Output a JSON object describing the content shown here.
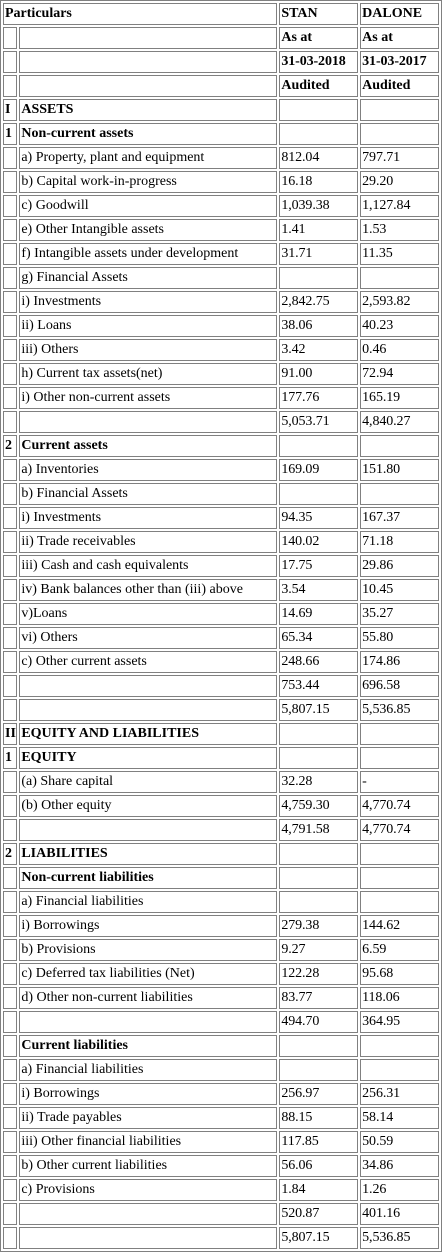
{
  "header": {
    "particulars": "Particulars",
    "col1_name": "STAN",
    "col2_name": "DALONE",
    "as_at": "As at",
    "col1_date": "31-03-2018",
    "col2_date": "31-03-2017",
    "audited": "Audited"
  },
  "rows": [
    {
      "idx": "I",
      "label": "ASSETS",
      "v1": "",
      "v2": "",
      "bold": true
    },
    {
      "idx": "1",
      "label": "Non-current assets",
      "v1": "",
      "v2": "",
      "bold": true
    },
    {
      "idx": "",
      "label": "a) Property, plant and equipment",
      "v1": "812.04",
      "v2": "797.71"
    },
    {
      "idx": "",
      "label": "b) Capital work-in-progress",
      "v1": "16.18",
      "v2": "29.20"
    },
    {
      "idx": "",
      "label": "c) Goodwill",
      "v1": "1,039.38",
      "v2": "1,127.84"
    },
    {
      "idx": "",
      "label": "e) Other Intangible assets",
      "v1": "1.41",
      "v2": "1.53"
    },
    {
      "idx": "",
      "label": "f) Intangible assets under development",
      "v1": "31.71",
      "v2": "11.35"
    },
    {
      "idx": "",
      "label": "g) Financial Assets",
      "v1": "",
      "v2": ""
    },
    {
      "idx": "",
      "label": "i) Investments",
      "v1": "2,842.75",
      "v2": "2,593.82"
    },
    {
      "idx": "",
      "label": "ii) Loans",
      "v1": "38.06",
      "v2": "40.23"
    },
    {
      "idx": "",
      "label": "iii) Others",
      "v1": "3.42",
      "v2": "0.46"
    },
    {
      "idx": "",
      "label": "h) Current tax assets(net)",
      "v1": "91.00",
      "v2": "72.94"
    },
    {
      "idx": "",
      "label": "i) Other non-current assets",
      "v1": "177.76",
      "v2": "165.19"
    },
    {
      "idx": "",
      "label": "",
      "v1": "5,053.71",
      "v2": "4,840.27"
    },
    {
      "idx": "2",
      "label": "Current assets",
      "v1": "",
      "v2": "",
      "bold": true
    },
    {
      "idx": "",
      "label": "a) Inventories",
      "v1": "169.09",
      "v2": "151.80"
    },
    {
      "idx": "",
      "label": "b) Financial Assets",
      "v1": "",
      "v2": ""
    },
    {
      "idx": "",
      "label": "i) Investments",
      "v1": "94.35",
      "v2": "167.37"
    },
    {
      "idx": "",
      "label": "ii) Trade receivables",
      "v1": "140.02",
      "v2": "71.18"
    },
    {
      "idx": "",
      "label": "iii) Cash and cash equivalents",
      "v1": "17.75",
      "v2": "29.86"
    },
    {
      "idx": "",
      "label": "iv) Bank balances other than (iii) above",
      "v1": "3.54",
      "v2": "10.45"
    },
    {
      "idx": "",
      "label": "v)Loans",
      "v1": "14.69",
      "v2": "35.27"
    },
    {
      "idx": "",
      "label": "vi) Others",
      "v1": "65.34",
      "v2": "55.80"
    },
    {
      "idx": "",
      "label": "c) Other current assets",
      "v1": "248.66",
      "v2": "174.86"
    },
    {
      "idx": "",
      "label": "",
      "v1": "753.44",
      "v2": "696.58"
    },
    {
      "idx": "",
      "label": "",
      "v1": "5,807.15",
      "v2": "5,536.85"
    },
    {
      "idx": "II",
      "label": "EQUITY AND LIABILITIES",
      "v1": "",
      "v2": "",
      "bold": true
    },
    {
      "idx": "1",
      "label": "EQUITY",
      "v1": "",
      "v2": "",
      "bold": true
    },
    {
      "idx": "",
      "label": "(a) Share capital",
      "v1": "32.28",
      "v2": "-"
    },
    {
      "idx": "",
      "label": "(b) Other equity",
      "v1": "4,759.30",
      "v2": "4,770.74"
    },
    {
      "idx": "",
      "label": "",
      "v1": "4,791.58",
      "v2": "4,770.74"
    },
    {
      "idx": "2",
      "label": "LIABILITIES",
      "v1": "",
      "v2": "",
      "bold": true
    },
    {
      "idx": "",
      "label": "Non-current liabilities",
      "v1": "",
      "v2": "",
      "bold": true
    },
    {
      "idx": "",
      "label": "a) Financial liabilities",
      "v1": "",
      "v2": ""
    },
    {
      "idx": "",
      "label": "i) Borrowings",
      "v1": "279.38",
      "v2": "144.62"
    },
    {
      "idx": "",
      "label": "b) Provisions",
      "v1": "9.27",
      "v2": "6.59"
    },
    {
      "idx": "",
      "label": "c) Deferred tax liabilities (Net)",
      "v1": "122.28",
      "v2": "95.68"
    },
    {
      "idx": "",
      "label": "d) Other non-current liabilities",
      "v1": "83.77",
      "v2": "118.06"
    },
    {
      "idx": "",
      "label": "",
      "v1": "494.70",
      "v2": "364.95"
    },
    {
      "idx": "",
      "label": "Current liabilities",
      "v1": "",
      "v2": "",
      "bold": true
    },
    {
      "idx": "",
      "label": "a) Financial liabilities",
      "v1": "",
      "v2": ""
    },
    {
      "idx": "",
      "label": "i) Borrowings",
      "v1": "256.97",
      "v2": "256.31"
    },
    {
      "idx": "",
      "label": "ii) Trade payables",
      "v1": "88.15",
      "v2": "58.14"
    },
    {
      "idx": "",
      "label": "iii) Other financial liabilities",
      "v1": "117.85",
      "v2": "50.59"
    },
    {
      "idx": "",
      "label": "b) Other current liabilities",
      "v1": "56.06",
      "v2": "34.86"
    },
    {
      "idx": "",
      "label": "c) Provisions",
      "v1": "1.84",
      "v2": "1.26"
    },
    {
      "idx": "",
      "label": "",
      "v1": "520.87",
      "v2": "401.16"
    },
    {
      "idx": "",
      "label": "",
      "v1": "5,807.15",
      "v2": "5,536.85"
    }
  ]
}
